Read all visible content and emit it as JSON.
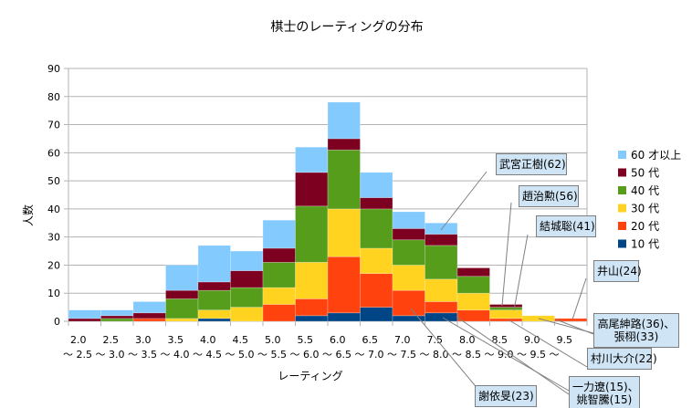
{
  "chart_data": {
    "type": "bar",
    "stacked": true,
    "title": "棋士のレーティングの分布",
    "xlabel": "レーティング",
    "ylabel": "人数",
    "ylim": [
      0,
      90
    ],
    "yticks": [
      0,
      10,
      20,
      30,
      40,
      50,
      60,
      70,
      80,
      90
    ],
    "grid": "horizontal",
    "legend_position": "right",
    "categories": [
      "2.0\n～ 2.5",
      "2.5\n～ 3.0",
      "3.0\n～ 3.5",
      "3.5\n～ 4.0",
      "4.0\n～ 4.5",
      "4.5\n～ 5.0",
      "5.0\n～ 5.5",
      "5.5\n～ 6.0",
      "6.0\n～ 6.5",
      "6.5\n～ 7.0",
      "7.0\n～ 7.5",
      "7.5\n～ 8.0",
      "8.0\n～ 8.5",
      "8.5\n～ 9.0",
      "9.0\n～ 9.5",
      "9.5\n～"
    ],
    "series": [
      {
        "name": "10 代",
        "color": "#004586",
        "values": [
          0,
          0,
          0,
          0,
          1,
          0,
          0,
          2,
          3,
          5,
          2,
          3,
          0,
          0,
          0,
          0
        ]
      },
      {
        "name": "20 代",
        "color": "#ff420e",
        "values": [
          0,
          0,
          1,
          0,
          0,
          0,
          6,
          6,
          20,
          12,
          9,
          4,
          4,
          1,
          0,
          1
        ]
      },
      {
        "name": "30 代",
        "color": "#ffd320",
        "values": [
          0,
          0,
          0,
          1,
          3,
          5,
          6,
          13,
          17,
          9,
          9,
          8,
          6,
          3,
          2,
          0
        ]
      },
      {
        "name": "40 代",
        "color": "#579d1c",
        "values": [
          0,
          1,
          0,
          7,
          7,
          7,
          9,
          20,
          21,
          14,
          9,
          12,
          6,
          1,
          0,
          0
        ]
      },
      {
        "name": "50 代",
        "color": "#7e0021",
        "values": [
          1,
          1,
          2,
          3,
          3,
          6,
          5,
          12,
          4,
          4,
          4,
          4,
          3,
          1,
          0,
          0
        ]
      },
      {
        "name": "60 才以上",
        "color": "#83caff",
        "values": [
          3,
          2,
          4,
          9,
          13,
          7,
          10,
          9,
          13,
          9,
          6,
          4,
          0,
          0,
          0,
          0
        ]
      }
    ],
    "annotations": [
      {
        "text": "武宮正樹(62)"
      },
      {
        "text": "趙治勲(56)"
      },
      {
        "text": "結城聡(41)"
      },
      {
        "text": "井山(24)"
      },
      {
        "text": "高尾紳路(36)、\n張栩(33)"
      },
      {
        "text": "村川大介(22)"
      },
      {
        "text": "一力遼(15)、\n姚智騰(15)"
      },
      {
        "text": "謝依旻(23)"
      }
    ]
  }
}
